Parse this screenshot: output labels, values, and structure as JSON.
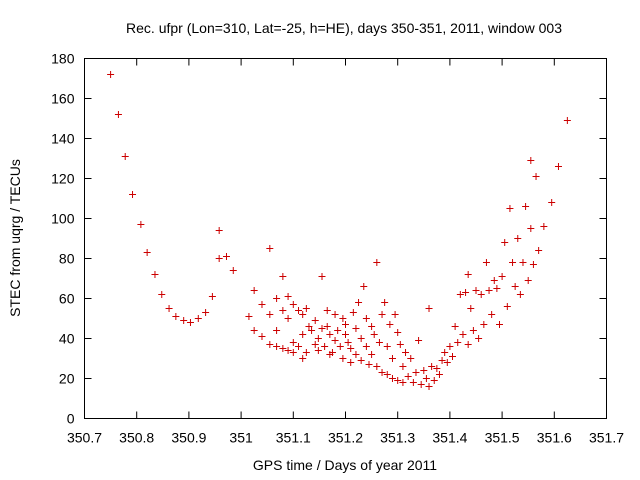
{
  "chart_data": {
    "type": "scatter",
    "title": "Rec. ufpr (Lon=310, Lat=-25, h=HE), days 350-351, 2011, window 003",
    "xlabel": "GPS time / Days of year 2011",
    "ylabel": "STEC from uqrg / TECUs",
    "xlim": [
      350.7,
      351.7
    ],
    "ylim": [
      0,
      180
    ],
    "x_ticks": [
      350.7,
      350.8,
      350.9,
      351,
      351.1,
      351.2,
      351.3,
      351.4,
      351.5,
      351.6,
      351.7
    ],
    "x_tick_labels": [
      "350.7",
      "350.8",
      "350.9",
      "351",
      "351.1",
      "351.2",
      "351.3",
      "351.4",
      "351.5",
      "351.6",
      "351.7"
    ],
    "y_ticks": [
      0,
      20,
      40,
      60,
      80,
      100,
      120,
      140,
      160,
      180
    ],
    "y_tick_labels": [
      "0",
      "20",
      "40",
      "60",
      "80",
      "100",
      "120",
      "140",
      "160",
      "180"
    ],
    "grid": false,
    "marker": "+",
    "marker_color": "#cc0000",
    "series": [
      {
        "name": "STEC",
        "points": [
          [
            350.75,
            172
          ],
          [
            350.765,
            152
          ],
          [
            350.778,
            131
          ],
          [
            350.792,
            112
          ],
          [
            350.808,
            97
          ],
          [
            350.82,
            83
          ],
          [
            350.835,
            72
          ],
          [
            350.848,
            62
          ],
          [
            350.862,
            55
          ],
          [
            350.875,
            51
          ],
          [
            350.89,
            49
          ],
          [
            350.903,
            48
          ],
          [
            350.918,
            50
          ],
          [
            350.932,
            53
          ],
          [
            350.945,
            61
          ],
          [
            350.958,
            80
          ],
          [
            350.958,
            94
          ],
          [
            350.972,
            81
          ],
          [
            350.985,
            74
          ],
          [
            351.015,
            51
          ],
          [
            351.025,
            64
          ],
          [
            351.025,
            44
          ],
          [
            351.04,
            57
          ],
          [
            351.04,
            41
          ],
          [
            351.055,
            85
          ],
          [
            351.055,
            52
          ],
          [
            351.055,
            37
          ],
          [
            351.068,
            60
          ],
          [
            351.068,
            44
          ],
          [
            351.068,
            36
          ],
          [
            351.08,
            71
          ],
          [
            351.08,
            54
          ],
          [
            351.08,
            35
          ],
          [
            351.09,
            61
          ],
          [
            351.09,
            50
          ],
          [
            351.09,
            34
          ],
          [
            351.1,
            57
          ],
          [
            351.1,
            38
          ],
          [
            351.1,
            33
          ],
          [
            351.11,
            54
          ],
          [
            351.11,
            36
          ],
          [
            351.118,
            52
          ],
          [
            351.118,
            42
          ],
          [
            351.118,
            30
          ],
          [
            351.125,
            55
          ],
          [
            351.125,
            33
          ],
          [
            351.13,
            46
          ],
          [
            351.135,
            44
          ],
          [
            351.142,
            49
          ],
          [
            351.142,
            37
          ],
          [
            351.148,
            40
          ],
          [
            351.148,
            34
          ],
          [
            351.155,
            71
          ],
          [
            351.155,
            45
          ],
          [
            351.16,
            36
          ],
          [
            351.165,
            54
          ],
          [
            351.165,
            46
          ],
          [
            351.17,
            42
          ],
          [
            351.17,
            32
          ],
          [
            351.175,
            33
          ],
          [
            351.18,
            52
          ],
          [
            351.18,
            39
          ],
          [
            351.185,
            44
          ],
          [
            351.19,
            36
          ],
          [
            351.195,
            50
          ],
          [
            351.195,
            30
          ],
          [
            351.2,
            47
          ],
          [
            351.2,
            42
          ],
          [
            351.205,
            38
          ],
          [
            351.21,
            35
          ],
          [
            351.21,
            28
          ],
          [
            351.215,
            53
          ],
          [
            351.22,
            45
          ],
          [
            351.22,
            32
          ],
          [
            351.225,
            58
          ],
          [
            351.23,
            40
          ],
          [
            351.23,
            29
          ],
          [
            351.235,
            66
          ],
          [
            351.24,
            50
          ],
          [
            351.24,
            36
          ],
          [
            351.245,
            27
          ],
          [
            351.25,
            46
          ],
          [
            351.25,
            32
          ],
          [
            351.255,
            42
          ],
          [
            351.26,
            78
          ],
          [
            351.26,
            26
          ],
          [
            351.265,
            38
          ],
          [
            351.27,
            52
          ],
          [
            351.27,
            23
          ],
          [
            351.275,
            58
          ],
          [
            351.28,
            36
          ],
          [
            351.28,
            22
          ],
          [
            351.285,
            47
          ],
          [
            351.29,
            30
          ],
          [
            351.29,
            20
          ],
          [
            351.295,
            52
          ],
          [
            351.3,
            43
          ],
          [
            351.3,
            19
          ],
          [
            351.305,
            37
          ],
          [
            351.31,
            26
          ],
          [
            351.31,
            18
          ],
          [
            351.315,
            33
          ],
          [
            351.32,
            21
          ],
          [
            351.325,
            30
          ],
          [
            351.33,
            18
          ],
          [
            351.335,
            23
          ],
          [
            351.34,
            39
          ],
          [
            351.345,
            17
          ],
          [
            351.35,
            24
          ],
          [
            351.355,
            20
          ],
          [
            351.36,
            55
          ],
          [
            351.36,
            16
          ],
          [
            351.365,
            26
          ],
          [
            351.37,
            19
          ],
          [
            351.375,
            25
          ],
          [
            351.38,
            22
          ],
          [
            351.385,
            29
          ],
          [
            351.39,
            33
          ],
          [
            351.395,
            28
          ],
          [
            351.4,
            36
          ],
          [
            351.405,
            31
          ],
          [
            351.41,
            46
          ],
          [
            351.415,
            38
          ],
          [
            351.42,
            62
          ],
          [
            351.425,
            42
          ],
          [
            351.43,
            63
          ],
          [
            351.435,
            72
          ],
          [
            351.435,
            37
          ],
          [
            351.44,
            55
          ],
          [
            351.445,
            44
          ],
          [
            351.45,
            64
          ],
          [
            351.455,
            40
          ],
          [
            351.46,
            62
          ],
          [
            351.465,
            47
          ],
          [
            351.47,
            78
          ],
          [
            351.475,
            64
          ],
          [
            351.48,
            52
          ],
          [
            351.485,
            69
          ],
          [
            351.49,
            65
          ],
          [
            351.495,
            47
          ],
          [
            351.5,
            71
          ],
          [
            351.505,
            88
          ],
          [
            351.51,
            56
          ],
          [
            351.515,
            105
          ],
          [
            351.52,
            78
          ],
          [
            351.525,
            66
          ],
          [
            351.53,
            90
          ],
          [
            351.535,
            62
          ],
          [
            351.54,
            78
          ],
          [
            351.545,
            106
          ],
          [
            351.55,
            69
          ],
          [
            351.555,
            95
          ],
          [
            351.555,
            129
          ],
          [
            351.56,
            77
          ],
          [
            351.565,
            121
          ],
          [
            351.57,
            84
          ],
          [
            351.58,
            96
          ],
          [
            351.595,
            108
          ],
          [
            351.608,
            126
          ],
          [
            351.625,
            149
          ]
        ]
      }
    ]
  }
}
